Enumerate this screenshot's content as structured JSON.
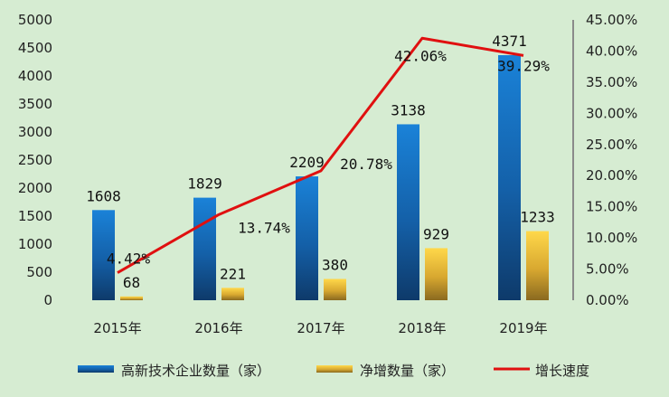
{
  "chart_data": {
    "type": "bar",
    "categories": [
      "2015年",
      "2016年",
      "2017年",
      "2018年",
      "2019年"
    ],
    "series": [
      {
        "name": "高新技术企业数量（家）",
        "type": "bar",
        "axis": "left",
        "values": [
          1608,
          1829,
          2209,
          3138,
          4371
        ],
        "labels": [
          "1608",
          "1829",
          "2209",
          "3138",
          "4371"
        ],
        "color": "#1a6fc0"
      },
      {
        "name": "净增数量（家）",
        "type": "bar",
        "axis": "left",
        "values": [
          68,
          221,
          380,
          929,
          1233
        ],
        "labels": [
          "68",
          "221",
          "380",
          "929",
          "1233"
        ],
        "color": "#f2c12e"
      },
      {
        "name": "增长速度",
        "type": "line",
        "axis": "right",
        "values": [
          4.42,
          13.74,
          20.78,
          42.06,
          39.29
        ],
        "labels": [
          "4.42%",
          "13.74%",
          "20.78%",
          "42.06%",
          "39.29%"
        ],
        "color": "#e01010"
      }
    ],
    "left_axis": {
      "min": 0,
      "max": 5000,
      "step": 500,
      "ticks": [
        "0",
        "500",
        "1000",
        "1500",
        "2000",
        "2500",
        "3000",
        "3500",
        "4000",
        "4500",
        "5000"
      ]
    },
    "right_axis": {
      "min": 0,
      "max": 45,
      "step": 5,
      "ticks": [
        "0.00%",
        "5.00%",
        "10.00%",
        "15.00%",
        "20.00%",
        "25.00%",
        "30.00%",
        "35.00%",
        "40.00%",
        "45.00%"
      ]
    },
    "legend_position": "bottom",
    "grid": false
  }
}
